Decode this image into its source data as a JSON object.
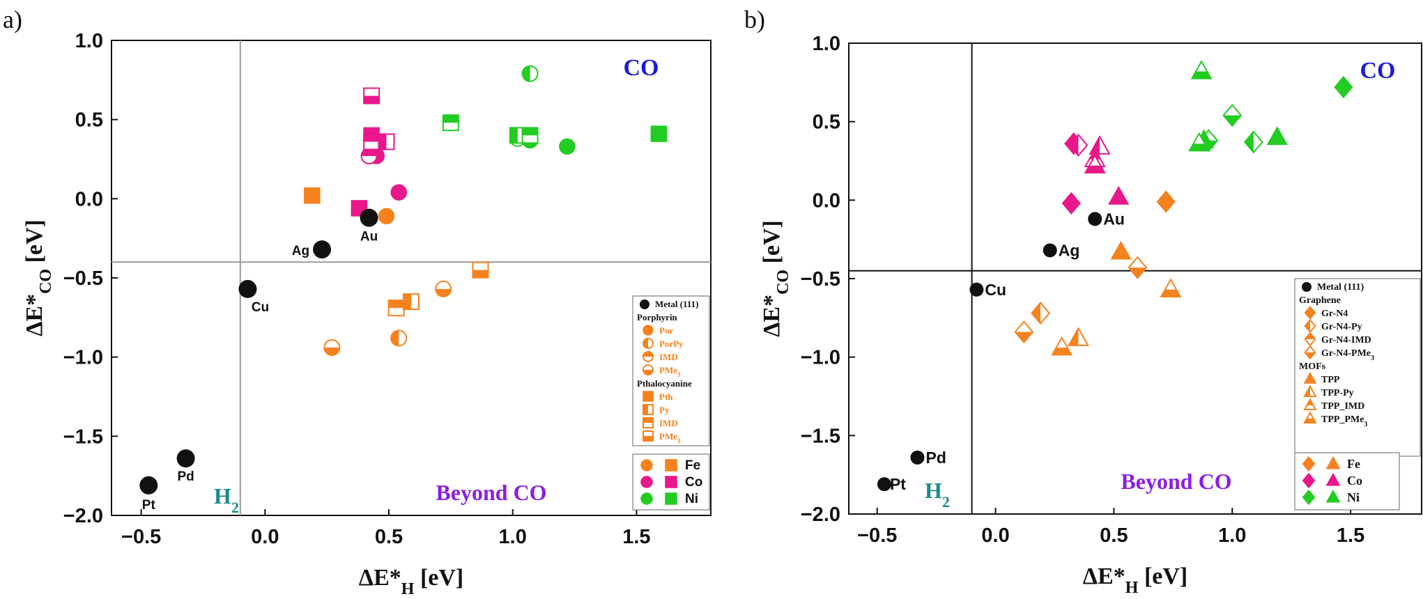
{
  "colors": {
    "Fe": "#f5821f",
    "Co": "#e8178a",
    "Ni": "#22cc22",
    "metal": "#111111",
    "co_label": "#1c1cd6",
    "beyond_label": "#8a1ee8",
    "h2_label": "#1a8a8a"
  },
  "chart_data": [
    {
      "panel_label": "a)",
      "type": "scatter",
      "xlabel": {
        "main": "ΔE*",
        "sub": "H",
        "unit": " [eV]"
      },
      "ylabel": {
        "main": "ΔE*",
        "sub": "CO",
        "unit": " [eV]"
      },
      "xlim": [
        -0.62,
        1.8
      ],
      "ylim": [
        -2.0,
        1.0
      ],
      "xticks": [
        "-0.5",
        "0.0",
        "0.5",
        "1.0",
        "1.5"
      ],
      "xtick_values": [
        -0.5,
        0.0,
        0.5,
        1.0,
        1.5
      ],
      "yticks": [
        "1.0",
        "0.5",
        "0.0",
        "-0.5",
        "-1.0",
        "-1.5",
        "-2.0"
      ],
      "ytick_values": [
        1.0,
        0.5,
        0.0,
        -0.5,
        -1.0,
        -1.5,
        -2.0
      ],
      "ref_lines": {
        "x": -0.1,
        "y": -0.4,
        "color": "#999999"
      },
      "regions": {
        "co": "CO",
        "beyond": "Beyond CO",
        "h2": "H2"
      },
      "metals": [
        {
          "name": "Pt",
          "x": -0.47,
          "y": -1.81
        },
        {
          "name": "Pd",
          "x": -0.32,
          "y": -1.64
        },
        {
          "name": "Cu",
          "x": -0.07,
          "y": -0.57
        },
        {
          "name": "Ag",
          "x": 0.23,
          "y": -0.32
        },
        {
          "name": "Au",
          "x": 0.42,
          "y": -0.12
        }
      ],
      "points": [
        {
          "x": 0.19,
          "y": 0.02,
          "shape": "square",
          "fill": "full",
          "metal": "Fe"
        },
        {
          "x": 0.49,
          "y": -0.11,
          "shape": "circle",
          "fill": "full",
          "metal": "Fe"
        },
        {
          "x": 0.54,
          "y": -0.88,
          "shape": "circle",
          "fill": "left",
          "metal": "Fe"
        },
        {
          "x": 0.72,
          "y": -0.57,
          "shape": "circle",
          "fill": "bottom",
          "metal": "Fe"
        },
        {
          "x": 0.27,
          "y": -0.94,
          "shape": "circle",
          "fill": "bottom",
          "metal": "Fe"
        },
        {
          "x": 0.53,
          "y": -0.69,
          "shape": "square",
          "fill": "top",
          "metal": "Fe"
        },
        {
          "x": 0.59,
          "y": -0.65,
          "shape": "square",
          "fill": "left",
          "metal": "Fe"
        },
        {
          "x": 0.87,
          "y": -0.45,
          "shape": "square",
          "fill": "bottom",
          "metal": "Fe"
        },
        {
          "x": 0.45,
          "y": 0.27,
          "shape": "circle",
          "fill": "full",
          "metal": "Co"
        },
        {
          "x": 0.42,
          "y": 0.27,
          "shape": "circle",
          "fill": "top",
          "metal": "Co"
        },
        {
          "x": 0.54,
          "y": 0.04,
          "shape": "circle",
          "fill": "full",
          "metal": "Co"
        },
        {
          "x": 0.38,
          "y": -0.06,
          "shape": "square",
          "fill": "full",
          "metal": "Co"
        },
        {
          "x": 0.43,
          "y": 0.65,
          "shape": "square",
          "fill": "bottom",
          "metal": "Co"
        },
        {
          "x": 0.43,
          "y": 0.4,
          "shape": "square",
          "fill": "full",
          "metal": "Co"
        },
        {
          "x": 0.43,
          "y": 0.36,
          "shape": "square",
          "fill": "top",
          "metal": "Co"
        },
        {
          "x": 0.49,
          "y": 0.36,
          "shape": "square",
          "fill": "left",
          "metal": "Co"
        },
        {
          "x": 1.07,
          "y": 0.79,
          "shape": "circle",
          "fill": "left",
          "metal": "Ni"
        },
        {
          "x": 1.22,
          "y": 0.33,
          "shape": "circle",
          "fill": "full",
          "metal": "Ni"
        },
        {
          "x": 1.02,
          "y": 0.38,
          "shape": "circle",
          "fill": "top",
          "metal": "Ni"
        },
        {
          "x": 1.07,
          "y": 0.37,
          "shape": "circle",
          "fill": "bottom",
          "metal": "Ni"
        },
        {
          "x": 0.75,
          "y": 0.48,
          "shape": "square",
          "fill": "top",
          "metal": "Ni"
        },
        {
          "x": 1.02,
          "y": 0.4,
          "shape": "square",
          "fill": "left",
          "metal": "Ni"
        },
        {
          "x": 1.07,
          "y": 0.4,
          "shape": "square",
          "fill": "top",
          "metal": "Ni"
        },
        {
          "x": 1.59,
          "y": 0.41,
          "shape": "square",
          "fill": "full",
          "metal": "Ni"
        }
      ],
      "legend": {
        "placement": "bottom-right",
        "metal_entry": "Metal (111)",
        "groups": [
          {
            "title": "Porphyrin",
            "entries": [
              {
                "label": "Por",
                "shape": "circle",
                "fill": "full"
              },
              {
                "label": "PorPy",
                "shape": "circle",
                "fill": "left"
              },
              {
                "label": "IMD",
                "shape": "circle",
                "fill": "top"
              },
              {
                "label": "PMe3",
                "shape": "circle",
                "fill": "bottom"
              }
            ]
          },
          {
            "title": "Pthalocyanine",
            "entries": [
              {
                "label": "Pth",
                "shape": "square",
                "fill": "full"
              },
              {
                "label": "Py",
                "shape": "square",
                "fill": "left"
              },
              {
                "label": "IMD",
                "shape": "square",
                "fill": "top"
              },
              {
                "label": "PMe3",
                "shape": "square",
                "fill": "bottom"
              }
            ]
          }
        ],
        "metal_key": [
          "Fe",
          "Co",
          "Ni"
        ]
      }
    },
    {
      "panel_label": "b)",
      "type": "scatter",
      "xlabel": {
        "main": "ΔE*",
        "sub": "H",
        "unit": " [eV]"
      },
      "ylabel": {
        "main": "ΔE*",
        "sub": "CO",
        "unit": " [eV]"
      },
      "xlim": [
        -0.62,
        1.8
      ],
      "ylim": [
        -2.0,
        1.0
      ],
      "xticks": [
        "-0.5",
        "0.0",
        "0.5",
        "1.0",
        "1.5"
      ],
      "xtick_values": [
        -0.5,
        0.0,
        0.5,
        1.0,
        1.5
      ],
      "yticks": [
        "1.0",
        "0.5",
        "0.0",
        "-0.5",
        "-1.0",
        "-1.5",
        "-2.0"
      ],
      "ytick_values": [
        1.0,
        0.5,
        0.0,
        -0.5,
        -1.0,
        -1.5,
        -2.0
      ],
      "ref_lines": {
        "x": -0.1,
        "y": -0.45,
        "color": "#111111"
      },
      "regions": {
        "co": "CO",
        "beyond": "Beyond CO",
        "h2": "H2"
      },
      "metals": [
        {
          "name": "Pt",
          "x": -0.47,
          "y": -1.81
        },
        {
          "name": "Pd",
          "x": -0.33,
          "y": -1.64
        },
        {
          "name": "Cu",
          "x": -0.08,
          "y": -0.57
        },
        {
          "name": "Ag",
          "x": 0.23,
          "y": -0.32
        },
        {
          "name": "Au",
          "x": 0.42,
          "y": -0.12
        }
      ],
      "points": [
        {
          "x": 0.72,
          "y": -0.01,
          "shape": "diamond",
          "fill": "full",
          "metal": "Fe"
        },
        {
          "x": 0.6,
          "y": -0.43,
          "shape": "diamond",
          "fill": "bottom",
          "metal": "Fe"
        },
        {
          "x": 0.19,
          "y": -0.72,
          "shape": "diamond",
          "fill": "left",
          "metal": "Fe"
        },
        {
          "x": 0.12,
          "y": -0.84,
          "shape": "diamond",
          "fill": "bottom",
          "metal": "Fe"
        },
        {
          "x": 0.53,
          "y": -0.33,
          "shape": "triangle",
          "fill": "full",
          "metal": "Fe"
        },
        {
          "x": 0.74,
          "y": -0.57,
          "shape": "triangle",
          "fill": "bottom",
          "metal": "Fe"
        },
        {
          "x": 0.35,
          "y": -0.88,
          "shape": "triangle",
          "fill": "left",
          "metal": "Fe"
        },
        {
          "x": 0.28,
          "y": -0.94,
          "shape": "triangle",
          "fill": "bottom",
          "metal": "Fe"
        },
        {
          "x": 0.32,
          "y": -0.02,
          "shape": "diamond",
          "fill": "full",
          "metal": "Co"
        },
        {
          "x": 0.33,
          "y": 0.36,
          "shape": "diamond",
          "fill": "full",
          "metal": "Co"
        },
        {
          "x": 0.35,
          "y": 0.35,
          "shape": "diamond",
          "fill": "left",
          "metal": "Co"
        },
        {
          "x": 0.52,
          "y": 0.02,
          "shape": "triangle",
          "fill": "full",
          "metal": "Co"
        },
        {
          "x": 0.44,
          "y": 0.34,
          "shape": "triangle",
          "fill": "left",
          "metal": "Co"
        },
        {
          "x": 0.42,
          "y": 0.26,
          "shape": "triangle",
          "fill": "top",
          "metal": "Co"
        },
        {
          "x": 0.42,
          "y": 0.22,
          "shape": "triangle",
          "fill": "bottom",
          "metal": "Co"
        },
        {
          "x": 1.47,
          "y": 0.72,
          "shape": "diamond",
          "fill": "full",
          "metal": "Ni"
        },
        {
          "x": 1.0,
          "y": 0.54,
          "shape": "diamond",
          "fill": "bottom",
          "metal": "Ni"
        },
        {
          "x": 1.09,
          "y": 0.37,
          "shape": "diamond",
          "fill": "left",
          "metal": "Ni"
        },
        {
          "x": 0.9,
          "y": 0.38,
          "shape": "diamond",
          "fill": "bottom",
          "metal": "Ni"
        },
        {
          "x": 0.87,
          "y": 0.82,
          "shape": "triangle",
          "fill": "bottom",
          "metal": "Ni"
        },
        {
          "x": 1.19,
          "y": 0.4,
          "shape": "triangle",
          "fill": "full",
          "metal": "Ni"
        },
        {
          "x": 0.88,
          "y": 0.38,
          "shape": "triangle",
          "fill": "full",
          "metal": "Ni"
        },
        {
          "x": 0.86,
          "y": 0.36,
          "shape": "triangle",
          "fill": "bottom",
          "metal": "Ni"
        }
      ],
      "legend": {
        "placement": "bottom-right",
        "metal_entry": "Metal (111)",
        "groups": [
          {
            "title": "Graphene",
            "entries": [
              {
                "label": "Gr-N4",
                "shape": "diamond",
                "fill": "full"
              },
              {
                "label": "Gr-N4-Py",
                "shape": "diamond",
                "fill": "left"
              },
              {
                "label": "Gr-N4-IMD",
                "shape": "diamond",
                "fill": "top"
              },
              {
                "label": "Gr-N4-PMe3",
                "shape": "diamond",
                "fill": "bottom"
              }
            ]
          },
          {
            "title": "MOFs",
            "entries": [
              {
                "label": "TPP",
                "shape": "triangle",
                "fill": "full"
              },
              {
                "label": "TPP-Py",
                "shape": "triangle",
                "fill": "left"
              },
              {
                "label": "TPP_IMD",
                "shape": "triangle",
                "fill": "top"
              },
              {
                "label": "TPP_PMe3",
                "shape": "triangle",
                "fill": "bottom"
              }
            ]
          }
        ],
        "metal_key": [
          "Fe",
          "Co",
          "Ni"
        ]
      }
    }
  ]
}
